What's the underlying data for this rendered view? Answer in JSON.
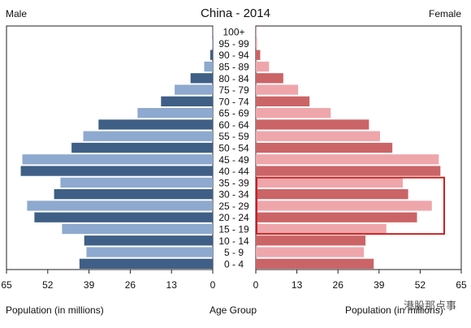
{
  "chart_data": {
    "type": "bar",
    "title": "China - 2014",
    "left_label": "Male",
    "right_label": "Female",
    "categories": [
      "100+",
      "95 - 99",
      "90 - 94",
      "85 - 89",
      "80 - 84",
      "75 - 79",
      "70 - 74",
      "65 - 69",
      "60 - 64",
      "55 - 59",
      "50 - 54",
      "45 - 49",
      "40 - 44",
      "35 - 39",
      "30 - 34",
      "25 - 29",
      "20 - 24",
      "15 - 19",
      "10 - 14",
      "5 - 9",
      "0 - 4"
    ],
    "series": [
      {
        "name": "Male",
        "values": [
          0.05,
          0.2,
          0.8,
          2.7,
          7.0,
          12.0,
          16.3,
          23.7,
          36.0,
          40.8,
          44.5,
          60.0,
          60.5,
          48.0,
          50.0,
          58.5,
          56.2,
          47.5,
          40.5,
          39.8,
          42.0
        ]
      },
      {
        "name": "Female",
        "values": [
          0.1,
          0.4,
          1.4,
          4.2,
          8.7,
          13.4,
          17.0,
          23.7,
          35.8,
          39.3,
          43.2,
          57.9,
          58.4,
          46.5,
          48.2,
          55.7,
          51.0,
          41.3,
          34.7,
          34.2,
          37.3
        ]
      }
    ],
    "xlim": [
      65,
      0
    ],
    "xlim_right": [
      0,
      65
    ],
    "xticks": [
      "65",
      "52",
      "39",
      "26",
      "13",
      "0"
    ],
    "xticks_right": [
      "0",
      "13",
      "26",
      "39",
      "52",
      "65"
    ],
    "xlabel": "Population (in millions)",
    "xlabel_center": "Age Group",
    "xlabel_right": "Population (in millions)",
    "highlight_range": [
      "15 - 19",
      "35 - 39"
    ],
    "colors": {
      "male_dark": "#3f5f86",
      "male_light": "#8ea9cf",
      "female_dark": "#cb6467",
      "female_light": "#eea6ab",
      "highlight": "#cc1f1f"
    }
  },
  "watermark": "港股那点事"
}
